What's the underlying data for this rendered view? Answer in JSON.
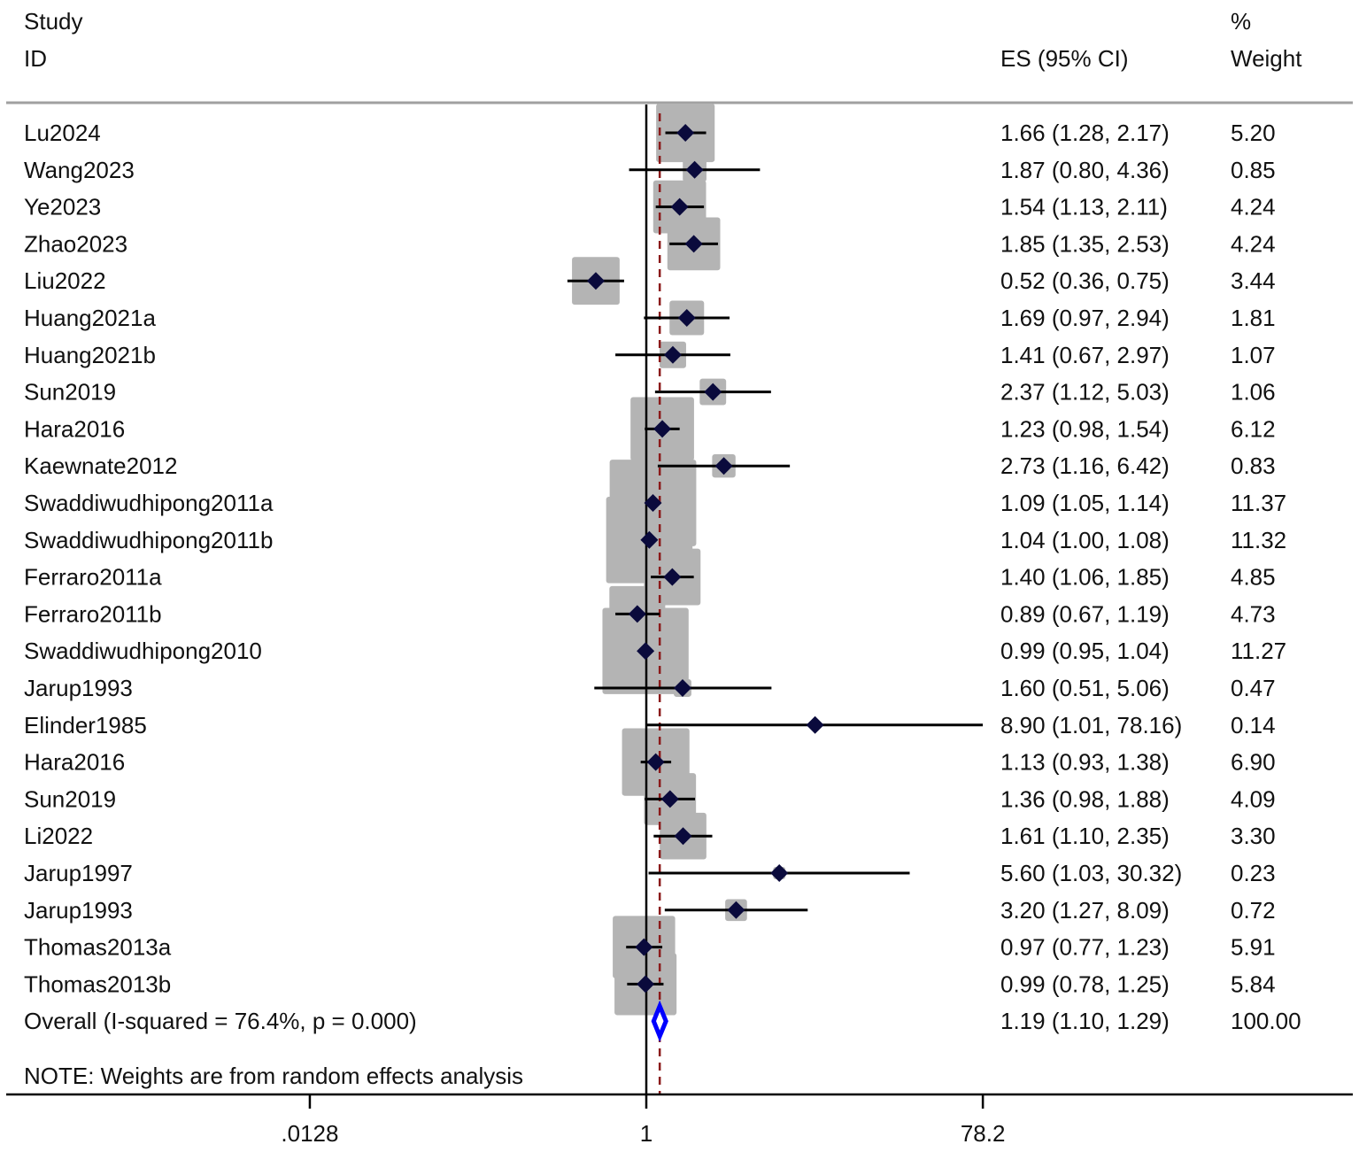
{
  "chart_data": {
    "type": "forest",
    "header": {
      "study": "Study",
      "id": "ID",
      "es": "ES (95% CI)",
      "pct": "%",
      "weight": "Weight"
    },
    "scale": "log",
    "xticks": [
      {
        "value": 0.0128,
        "label": ".0128"
      },
      {
        "value": 1,
        "label": "1"
      },
      {
        "value": 78.2,
        "label": "78.2"
      }
    ],
    "null_line": 1,
    "colors": {
      "box": "#b4b4b4",
      "marker": "#0a0a3c",
      "overall": "#0000ff",
      "overall_line": "#8b1a1a"
    },
    "studies": [
      {
        "id": "Lu2024",
        "es": 1.66,
        "lo": 1.28,
        "hi": 2.17,
        "weight": 5.2,
        "es_text": "1.66 (1.28, 2.17)",
        "weight_text": "5.20"
      },
      {
        "id": "Wang2023",
        "es": 1.87,
        "lo": 0.8,
        "hi": 4.36,
        "weight": 0.85,
        "es_text": "1.87 (0.80, 4.36)",
        "weight_text": "0.85"
      },
      {
        "id": "Ye2023",
        "es": 1.54,
        "lo": 1.13,
        "hi": 2.11,
        "weight": 4.24,
        "es_text": "1.54 (1.13, 2.11)",
        "weight_text": "4.24"
      },
      {
        "id": "Zhao2023",
        "es": 1.85,
        "lo": 1.35,
        "hi": 2.53,
        "weight": 4.24,
        "es_text": "1.85 (1.35, 2.53)",
        "weight_text": "4.24"
      },
      {
        "id": "Liu2022",
        "es": 0.52,
        "lo": 0.36,
        "hi": 0.75,
        "weight": 3.44,
        "es_text": "0.52 (0.36, 0.75)",
        "weight_text": "3.44"
      },
      {
        "id": "Huang2021a",
        "es": 1.69,
        "lo": 0.97,
        "hi": 2.94,
        "weight": 1.81,
        "es_text": "1.69 (0.97, 2.94)",
        "weight_text": "1.81"
      },
      {
        "id": "Huang2021b",
        "es": 1.41,
        "lo": 0.67,
        "hi": 2.97,
        "weight": 1.07,
        "es_text": "1.41 (0.67, 2.97)",
        "weight_text": "1.07"
      },
      {
        "id": "Sun2019",
        "es": 2.37,
        "lo": 1.12,
        "hi": 5.03,
        "weight": 1.06,
        "es_text": "2.37 (1.12, 5.03)",
        "weight_text": "1.06"
      },
      {
        "id": "Hara2016",
        "es": 1.23,
        "lo": 0.98,
        "hi": 1.54,
        "weight": 6.12,
        "es_text": "1.23 (0.98, 1.54)",
        "weight_text": "6.12"
      },
      {
        "id": "Kaewnate2012",
        "es": 2.73,
        "lo": 1.16,
        "hi": 6.42,
        "weight": 0.83,
        "es_text": "2.73 (1.16, 6.42)",
        "weight_text": "0.83"
      },
      {
        "id": "Swaddiwudhipong2011a",
        "es": 1.09,
        "lo": 1.05,
        "hi": 1.14,
        "weight": 11.37,
        "es_text": "1.09 (1.05, 1.14)",
        "weight_text": "11.37"
      },
      {
        "id": "Swaddiwudhipong2011b",
        "es": 1.04,
        "lo": 1.0,
        "hi": 1.08,
        "weight": 11.32,
        "es_text": "1.04 (1.00, 1.08)",
        "weight_text": "11.32"
      },
      {
        "id": "Ferraro2011a",
        "es": 1.4,
        "lo": 1.06,
        "hi": 1.85,
        "weight": 4.85,
        "es_text": "1.40 (1.06, 1.85)",
        "weight_text": "4.85"
      },
      {
        "id": "Ferraro2011b",
        "es": 0.89,
        "lo": 0.67,
        "hi": 1.19,
        "weight": 4.73,
        "es_text": "0.89 (0.67, 1.19)",
        "weight_text": "4.73"
      },
      {
        "id": "Swaddiwudhipong2010",
        "es": 0.99,
        "lo": 0.95,
        "hi": 1.04,
        "weight": 11.27,
        "es_text": "0.99 (0.95, 1.04)",
        "weight_text": "11.27"
      },
      {
        "id": "Jarup1993",
        "es": 1.6,
        "lo": 0.51,
        "hi": 5.06,
        "weight": 0.47,
        "es_text": "1.60 (0.51, 5.06)",
        "weight_text": "0.47"
      },
      {
        "id": "Elinder1985",
        "es": 8.9,
        "lo": 1.01,
        "hi": 78.16,
        "weight": 0.14,
        "es_text": "8.90 (1.01, 78.16)",
        "weight_text": "0.14"
      },
      {
        "id": "Hara2016",
        "es": 1.13,
        "lo": 0.93,
        "hi": 1.38,
        "weight": 6.9,
        "es_text": "1.13 (0.93, 1.38)",
        "weight_text": "6.90"
      },
      {
        "id": "Sun2019",
        "es": 1.36,
        "lo": 0.98,
        "hi": 1.88,
        "weight": 4.09,
        "es_text": "1.36 (0.98, 1.88)",
        "weight_text": "4.09"
      },
      {
        "id": "Li2022",
        "es": 1.61,
        "lo": 1.1,
        "hi": 2.35,
        "weight": 3.3,
        "es_text": "1.61 (1.10, 2.35)",
        "weight_text": "3.30"
      },
      {
        "id": "Jarup1997",
        "es": 5.6,
        "lo": 1.03,
        "hi": 30.32,
        "weight": 0.23,
        "es_text": "5.60 (1.03, 30.32)",
        "weight_text": "0.23"
      },
      {
        "id": "Jarup1993",
        "es": 3.2,
        "lo": 1.27,
        "hi": 8.09,
        "weight": 0.72,
        "es_text": "3.20 (1.27, 8.09)",
        "weight_text": "0.72"
      },
      {
        "id": "Thomas2013a",
        "es": 0.97,
        "lo": 0.77,
        "hi": 1.23,
        "weight": 5.91,
        "es_text": "0.97 (0.77, 1.23)",
        "weight_text": "5.91"
      },
      {
        "id": "Thomas2013b",
        "es": 0.99,
        "lo": 0.78,
        "hi": 1.25,
        "weight": 5.84,
        "es_text": "0.99 (0.78, 1.25)",
        "weight_text": "5.84"
      }
    ],
    "overall": {
      "label": "Overall  (I-squared = 76.4%, p = 0.000)",
      "es": 1.19,
      "lo": 1.1,
      "hi": 1.29,
      "es_text": "1.19 (1.10, 1.29)",
      "weight_text": "100.00"
    },
    "note": "NOTE: Weights are from random effects analysis"
  }
}
